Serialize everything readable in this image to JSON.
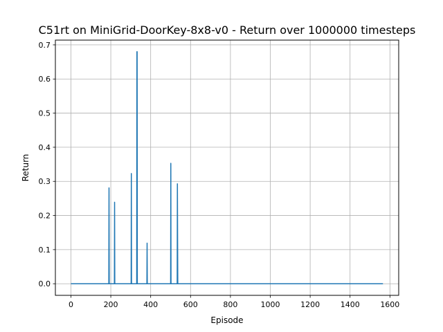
{
  "chart_data": {
    "type": "line",
    "title": "C51rt on MiniGrid-DoorKey-8x8-v0 - Return over 1000000 timesteps",
    "xlabel": "Episode",
    "ylabel": "Return",
    "xlim": [
      -78,
      1644
    ],
    "ylim": [
      -0.034,
      0.714
    ],
    "x_ticks": [
      0,
      200,
      400,
      600,
      800,
      1000,
      1200,
      1400,
      1600
    ],
    "y_ticks": [
      0.0,
      0.1,
      0.2,
      0.3,
      0.4,
      0.5,
      0.6,
      0.7
    ],
    "x_tick_labels": [
      "0",
      "200",
      "400",
      "600",
      "800",
      "1000",
      "1200",
      "1400",
      "1600"
    ],
    "y_tick_labels": [
      "0.0",
      "0.1",
      "0.2",
      "0.3",
      "0.4",
      "0.5",
      "0.6",
      "0.7"
    ],
    "grid": true,
    "line_color": "#1f77b4",
    "series": [
      {
        "x": [
          0,
          190,
          191,
          192,
          218,
          219,
          220,
          302,
          303,
          304,
          330,
          331,
          332,
          333,
          381,
          382,
          383,
          500,
          501,
          502,
          533,
          534,
          535,
          536,
          1565
        ],
        "values": [
          0,
          0,
          0.281,
          0,
          0,
          0.239,
          0,
          0,
          0.323,
          0,
          0,
          0.68,
          0.68,
          0,
          0,
          0.119,
          0,
          0,
          0.353,
          0,
          0,
          0.293,
          0.128,
          0,
          0
        ]
      }
    ]
  }
}
